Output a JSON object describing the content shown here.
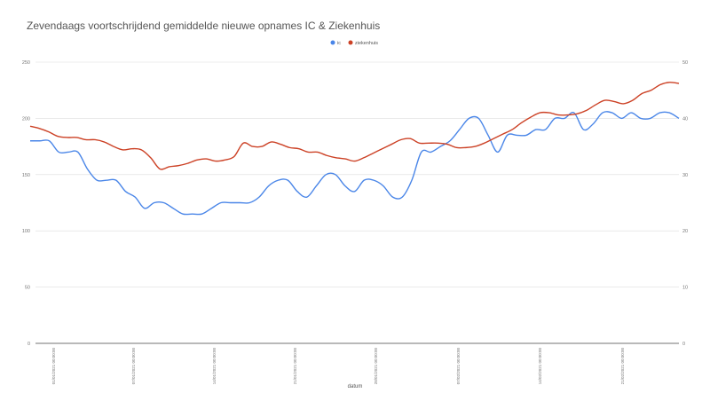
{
  "chart_data": {
    "type": "line",
    "title": "Zevendaags voortschrijdend gemiddelde nieuwe opnames IC & Ziekenhuis",
    "xlabel": "datum",
    "ylabel_left": "",
    "ylabel_right": "",
    "ylim_left": [
      0,
      250
    ],
    "ylim_right": [
      0,
      50
    ],
    "yticks_left": [
      "0",
      "50",
      "100",
      "150",
      "200",
      "250"
    ],
    "yticks_right": [
      "0",
      "10",
      "20",
      "30",
      "40",
      "50"
    ],
    "x_tick_labels": [
      "01/01/2021 00:00:00",
      "07/01/2021 00:00:00",
      "14/01/2021 00:00:00",
      "21/01/2021 00:00:00",
      "28/01/2021 00:00:00",
      "07/02/2021 00:00:00",
      "14/02/2021 00:00:00",
      "21/02/2021 00:00:00"
    ],
    "legend_position": "top",
    "grid": true,
    "series": [
      {
        "name": "ic",
        "axis": "right",
        "color": "#4a86e8",
        "values": [
          36,
          36,
          36,
          34,
          34,
          34,
          31,
          29,
          29,
          29,
          27,
          26,
          24,
          25,
          25,
          24,
          23,
          23,
          23,
          24,
          25,
          25,
          25,
          25,
          26,
          28,
          29,
          29,
          27,
          26,
          28,
          30,
          30,
          28,
          27,
          29,
          29,
          28,
          26,
          26,
          29,
          34,
          34,
          35,
          36,
          38,
          40,
          40,
          37,
          34,
          37,
          37,
          37,
          38,
          38,
          40,
          40,
          41,
          38,
          39,
          41,
          41,
          40,
          41,
          40,
          40,
          41,
          41,
          40
        ]
      },
      {
        "name": "ziekenhuis",
        "axis": "left",
        "color": "#cc4125",
        "values": [
          193,
          191,
          188,
          184,
          183,
          183,
          181,
          181,
          179,
          175,
          172,
          173,
          172,
          165,
          155,
          157,
          158,
          160,
          163,
          164,
          162,
          163,
          166,
          178,
          175,
          175,
          179,
          177,
          174,
          173,
          170,
          170,
          167,
          165,
          164,
          162,
          165,
          169,
          173,
          177,
          181,
          182,
          178,
          178,
          178,
          177,
          174,
          174,
          175,
          178,
          182,
          186,
          190,
          196,
          201,
          205,
          205,
          203,
          203,
          204,
          207,
          212,
          216,
          215,
          213,
          216,
          222,
          225,
          230,
          232,
          231
        ]
      }
    ]
  }
}
